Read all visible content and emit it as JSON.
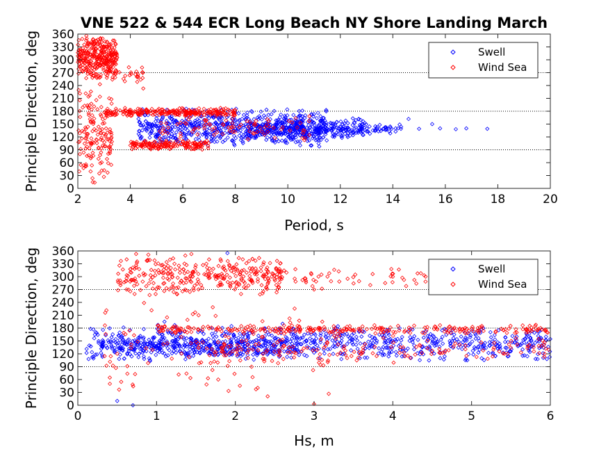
{
  "figure": {
    "title": "VNE 522 & 544 ECR Long Beach NY Shore Landing March"
  },
  "colors": {
    "swell": "#0000ff",
    "wind_sea": "#ff0000",
    "reference_lines": "#000000"
  },
  "chart_data": [
    {
      "type": "scatter",
      "title": "VNE 522 & 544 ECR Long Beach NY Shore Landing March",
      "xlabel": "Period, s",
      "ylabel": "Principle Direction, deg",
      "xlim": [
        2,
        20
      ],
      "ylim": [
        0,
        360
      ],
      "xticks": [
        2,
        4,
        6,
        8,
        10,
        12,
        14,
        16,
        18,
        20
      ],
      "yticks": [
        0,
        30,
        60,
        90,
        120,
        150,
        180,
        210,
        240,
        270,
        300,
        330,
        360
      ],
      "reference_lines_y": [
        90,
        180,
        270
      ],
      "legend": {
        "position": "top-right",
        "entries": [
          "Swell",
          "Wind Sea"
        ]
      },
      "series": [
        {
          "name": "Swell",
          "marker": "diamond",
          "color": "#0000ff",
          "clusters": [
            {
              "xmin": 4.3,
              "xmax": 11.5,
              "ymin": 95,
              "ymax": 190,
              "n": 650
            },
            {
              "xmin": 8.5,
              "xmax": 13.0,
              "ymin": 110,
              "ymax": 165,
              "n": 260
            },
            {
              "xmin": 11.0,
              "xmax": 14.5,
              "ymin": 125,
              "ymax": 150,
              "n": 70
            }
          ],
          "points": [
            [
              13.5,
              138
            ],
            [
              14.2,
              140
            ],
            [
              15.0,
              139
            ],
            [
              15.8,
              140
            ],
            [
              16.4,
              138
            ],
            [
              16.8,
              140
            ],
            [
              17.6,
              139
            ],
            [
              15.5,
              150
            ],
            [
              14.6,
              162
            ]
          ]
        },
        {
          "name": "Wind Sea",
          "marker": "diamond",
          "color": "#ff0000",
          "clusters": [
            {
              "xmin": 2.0,
              "xmax": 3.5,
              "ymin": 250,
              "ymax": 360,
              "n": 320
            },
            {
              "xmin": 2.0,
              "xmax": 3.3,
              "ymin": 0,
              "ymax": 250,
              "n": 150
            },
            {
              "xmin": 3.0,
              "xmax": 8.0,
              "ymin": 168,
              "ymax": 188,
              "n": 250
            },
            {
              "xmin": 4.0,
              "xmax": 7.0,
              "ymin": 90,
              "ymax": 112,
              "n": 160
            },
            {
              "xmin": 5.0,
              "xmax": 11.0,
              "ymin": 110,
              "ymax": 175,
              "n": 90
            },
            {
              "xmin": 2.5,
              "xmax": 4.5,
              "ymin": 230,
              "ymax": 300,
              "n": 40
            }
          ],
          "points": []
        }
      ]
    },
    {
      "type": "scatter",
      "xlabel": "Hs, m",
      "ylabel": "Principle Direction, deg",
      "xlim": [
        0,
        6
      ],
      "ylim": [
        0,
        360
      ],
      "xticks": [
        0,
        1,
        2,
        3,
        4,
        5,
        6
      ],
      "yticks": [
        0,
        30,
        60,
        90,
        120,
        150,
        180,
        210,
        240,
        270,
        300,
        330,
        360
      ],
      "reference_lines_y": [
        90,
        180,
        270
      ],
      "legend": {
        "position": "top-right",
        "entries": [
          "Swell",
          "Wind Sea"
        ]
      },
      "series": [
        {
          "name": "Swell",
          "marker": "diamond",
          "color": "#0000ff",
          "clusters": [
            {
              "xmin": 0.1,
              "xmax": 6.0,
              "ymin": 100,
              "ymax": 190,
              "n": 800
            },
            {
              "xmin": 0.3,
              "xmax": 2.8,
              "ymin": 110,
              "ymax": 160,
              "n": 260
            }
          ],
          "points": [
            [
              0.5,
              10
            ],
            [
              0.7,
              0
            ],
            [
              1.9,
              355
            ],
            [
              2.6,
              190
            ],
            [
              1.1,
              195
            ]
          ]
        },
        {
          "name": "Wind Sea",
          "marker": "diamond",
          "color": "#ff0000",
          "clusters": [
            {
              "xmin": 0.5,
              "xmax": 2.6,
              "ymin": 250,
              "ymax": 355,
              "n": 320
            },
            {
              "xmin": 2.0,
              "xmax": 5.5,
              "ymin": 270,
              "ymax": 320,
              "n": 80
            },
            {
              "xmin": 0.3,
              "xmax": 3.2,
              "ymin": 0,
              "ymax": 250,
              "n": 120
            },
            {
              "xmin": 1.0,
              "xmax": 6.0,
              "ymin": 165,
              "ymax": 188,
              "n": 260
            },
            {
              "xmin": 1.5,
              "xmax": 6.0,
              "ymin": 98,
              "ymax": 165,
              "n": 150
            }
          ],
          "points": [
            [
              3.0,
              270
            ],
            [
              3.1,
              272
            ],
            [
              3.0,
              3
            ],
            [
              4.0,
              300
            ],
            [
              5.8,
              272
            ]
          ]
        }
      ]
    }
  ]
}
